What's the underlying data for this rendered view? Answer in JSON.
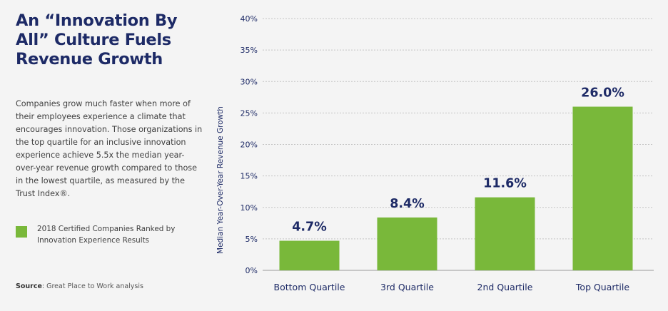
{
  "title": "An “Innovation By All” Culture Fuels Revenue Growth",
  "description": "Companies grow much faster when more of their employees experience a climate that encourages innovation. Those organizations in the top quartile for an inclusive innovation experience achieve 5.5x the median year-over-year revenue growth compared to those in the lowest quartile, as measured by the Trust Index®.",
  "legend_label": "2018 Certified Companies Ranked by Innovation Experience Results",
  "source": {
    "label": "Source",
    "text": ": Great Place to Work analysis"
  },
  "colors": {
    "bar": "#79b83a",
    "text": "#1d2a66",
    "grid": "#c4c4c4"
  },
  "chart_data": {
    "type": "bar",
    "categories": [
      "Bottom Quartile",
      "3rd Quartile",
      "2nd Quartile",
      "Top Quartile"
    ],
    "values": [
      4.7,
      8.4,
      11.6,
      26.0
    ],
    "data_labels": [
      "4.7%",
      "8.4%",
      "11.6%",
      "26.0%"
    ],
    "ylabel": "Median Year-Over-Year Revenue Growth",
    "ylim": [
      0,
      40
    ],
    "yticks": [
      0,
      5,
      10,
      15,
      20,
      25,
      30,
      35,
      40
    ],
    "ytick_labels": [
      "0%",
      "5%",
      "10%",
      "15%",
      "20%",
      "25%",
      "30%",
      "35%",
      "40%"
    ],
    "grid": true,
    "legend": "left"
  }
}
